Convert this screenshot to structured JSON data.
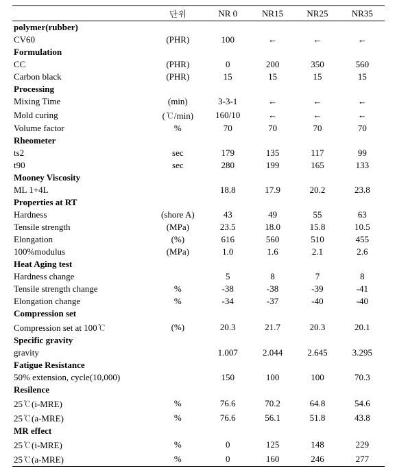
{
  "arrow": "←",
  "columns": {
    "unit_header": "단위",
    "c1": "NR 0",
    "c2": "NR15",
    "c3": "NR25",
    "c4": "NR35"
  },
  "sections": {
    "polymer": {
      "title": "polymer(rubber)"
    },
    "formulation": {
      "title": "Formulation"
    },
    "processing": {
      "title": "Processing"
    },
    "rheometer": {
      "title": "Rheometer"
    },
    "mooney": {
      "title": "Mooney Viscosity"
    },
    "prop_rt": {
      "title": "Properties at RT"
    },
    "heat_aging": {
      "title": "Heat Aging test"
    },
    "compression": {
      "title": "Compression set"
    },
    "sg": {
      "title": "Specific gravity"
    },
    "fatigue": {
      "title": "Fatigue Resistance"
    },
    "resilience": {
      "title": "Resilence"
    },
    "mr": {
      "title": "MR effect"
    }
  },
  "rows": {
    "cv60": {
      "label": "CV60",
      "unit": "(PHR)",
      "v1": "100",
      "v2": "←",
      "v3": "←",
      "v4": "←"
    },
    "cc": {
      "label": "CC",
      "unit": "(PHR)",
      "v1": "0",
      "v2": "200",
      "v3": "350",
      "v4": "560"
    },
    "cb": {
      "label": "Carbon black",
      "unit": "(PHR)",
      "v1": "15",
      "v2": "15",
      "v3": "15",
      "v4": "15"
    },
    "mix": {
      "label": "Mixing Time",
      "unit": "(min)",
      "v1": "3-3-1",
      "v2": "←",
      "v3": "←",
      "v4": "←"
    },
    "mold": {
      "label": "Mold curing",
      "unit": "(℃/min)",
      "v1": "160/10",
      "v2": "←",
      "v3": "←",
      "v4": "←"
    },
    "vf": {
      "label": "Volume factor",
      "unit": "%",
      "v1": "70",
      "v2": "70",
      "v3": "70",
      "v4": "70"
    },
    "ts2": {
      "label": "ts2",
      "unit": "sec",
      "v1": "179",
      "v2": "135",
      "v3": "117",
      "v4": "99"
    },
    "t90": {
      "label": "t90",
      "unit": "sec",
      "v1": "280",
      "v2": "199",
      "v3": "165",
      "v4": "133"
    },
    "ml": {
      "label": "ML 1+4L",
      "unit": "",
      "v1": "18.8",
      "v2": "17.9",
      "v3": "20.2",
      "v4": "23.8"
    },
    "hard": {
      "label": "Hardness",
      "unit": "(shore A)",
      "v1": "43",
      "v2": "49",
      "v3": "55",
      "v4": "63"
    },
    "tens": {
      "label": "Tensile strength",
      "unit": "(MPa)",
      "v1": "23.5",
      "v2": "18.0",
      "v3": "15.8",
      "v4": "10.5"
    },
    "elong": {
      "label": "Elongation",
      "unit": "(%)",
      "v1": "616",
      "v2": "560",
      "v3": "510",
      "v4": "455"
    },
    "mod100": {
      "label": "100%modulus",
      "unit": "(MPa)",
      "v1": "1.0",
      "v2": "1.6",
      "v3": "2.1",
      "v4": "2.6"
    },
    "hch": {
      "label": "Hardness change",
      "unit": "",
      "v1": "5",
      "v2": "8",
      "v3": "7",
      "v4": "8"
    },
    "tch": {
      "label": "Tensile strength change",
      "unit": "%",
      "v1": "-38",
      "v2": "-38",
      "v3": "-39",
      "v4": "-41"
    },
    "ech": {
      "label": "Elongation change",
      "unit": "%",
      "v1": "-34",
      "v2": "-37",
      "v3": "-40",
      "v4": "-40"
    },
    "cs": {
      "label": "Compression set at 100℃",
      "unit": "(%)",
      "v1": "20.3",
      "v2": "21.7",
      "v3": "20.3",
      "v4": "20.1"
    },
    "grav": {
      "label": "gravity",
      "unit": "",
      "v1": "1.007",
      "v2": "2.044",
      "v3": "2.645",
      "v4": "3.295"
    },
    "fat": {
      "label": "50% extension, cycle(10,000)",
      "unit": "",
      "v1": "150",
      "v2": "100",
      "v3": "100",
      "v4": "70.3"
    },
    "res_i": {
      "label": "25℃(i-MRE)",
      "unit": "%",
      "v1": "76.6",
      "v2": "70.2",
      "v3": "64.8",
      "v4": "54.6"
    },
    "res_a": {
      "label": "25℃(a-MRE)",
      "unit": "%",
      "v1": "76.6",
      "v2": "56.1",
      "v3": "51.8",
      "v4": "43.8"
    },
    "mr_i": {
      "label": "25℃(i-MRE)",
      "unit": "%",
      "v1": "0",
      "v2": "125",
      "v3": "148",
      "v4": "229"
    },
    "mr_a": {
      "label": "25℃(a-MRE)",
      "unit": "%",
      "v1": "0",
      "v2": "160",
      "v3": "246",
      "v4": "277"
    }
  }
}
